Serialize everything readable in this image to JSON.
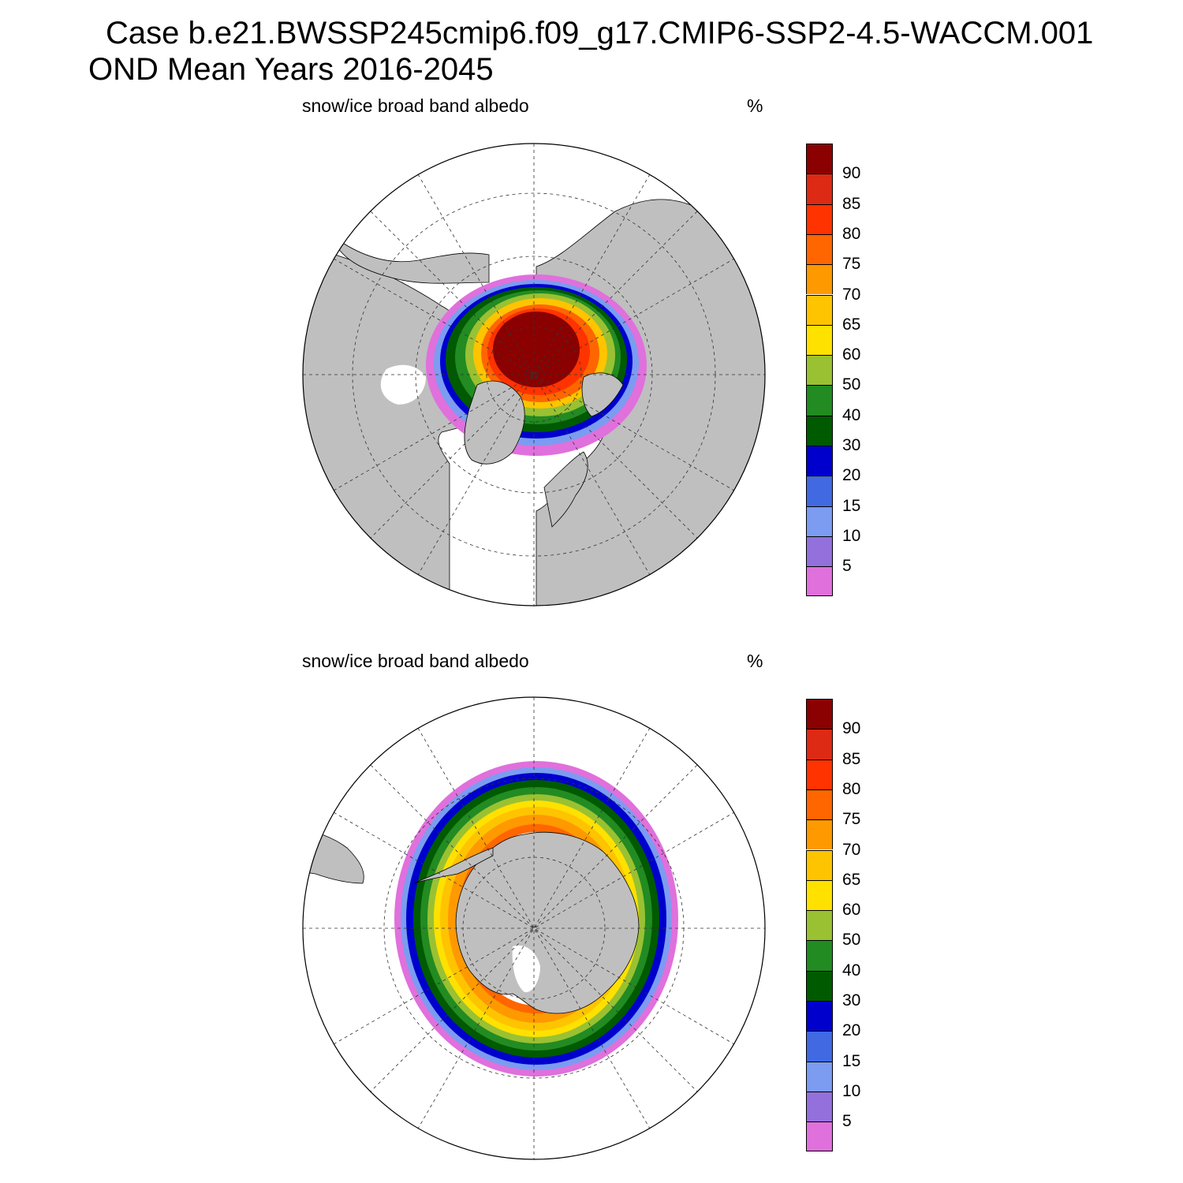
{
  "title": {
    "line1": "Case b.e21.BWSSP245cmip6.f09_g17.CMIP6-SSP2-4.5-WACCM.001",
    "line2": "OND Mean   Years 2016-2045"
  },
  "colors": {
    "land": "#bfbfbf",
    "ocean": "#ffffff",
    "scale": [
      "#e070dc",
      "#9370db",
      "#7b9cf0",
      "#4169e1",
      "#0000cd",
      "#005a00",
      "#228b22",
      "#9ac132",
      "#ffe100",
      "#ffc400",
      "#ff9900",
      "#ff6600",
      "#ff3300",
      "#dc2a15",
      "#8b0000"
    ]
  },
  "colorbar_levels": [
    "5",
    "10",
    "15",
    "20",
    "30",
    "40",
    "50",
    "60",
    "65",
    "70",
    "75",
    "80",
    "85",
    "90"
  ],
  "panels": [
    {
      "id": "north",
      "variable_label": "snow/ice broad band albedo",
      "units_label": "%",
      "projection": "polar-stereographic-north"
    },
    {
      "id": "south",
      "variable_label": "snow/ice broad band albedo",
      "units_label": "%",
      "projection": "polar-stereographic-south"
    }
  ]
}
